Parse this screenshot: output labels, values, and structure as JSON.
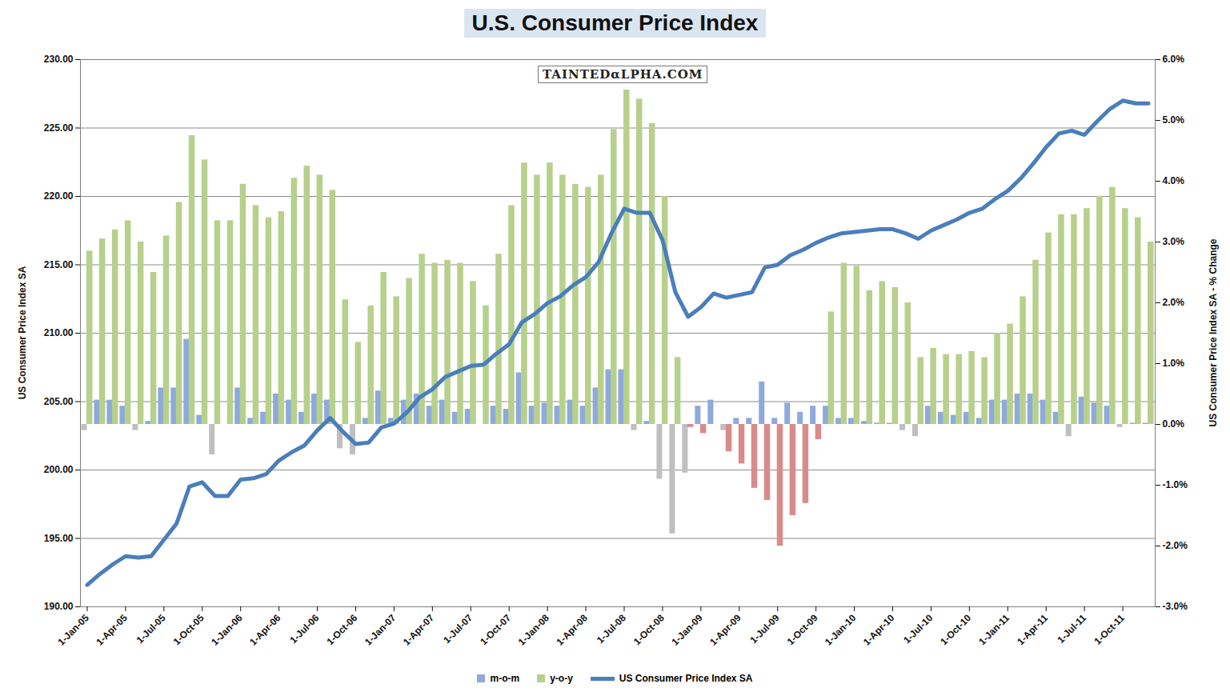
{
  "chart_data": {
    "type": "bar",
    "title": "U.S. Consumer Price Index",
    "annotations": [
      "TAINTEDαLPHA.COM"
    ],
    "y_label": "US Consumer Price Index SA",
    "y2_label": "US Consumer Price Index SA - % Change",
    "grid": true,
    "legend": "bottom",
    "categories": [
      "1-Jan-05",
      null,
      null,
      "1-Apr-05",
      null,
      null,
      "1-Jul-05",
      null,
      null,
      "1-Oct-05",
      null,
      null,
      "1-Jan-06",
      null,
      null,
      "1-Apr-06",
      null,
      null,
      "1-Jul-06",
      null,
      null,
      "1-Oct-06",
      null,
      null,
      "1-Jan-07",
      null,
      null,
      "1-Apr-07",
      null,
      null,
      "1-Jul-07",
      null,
      null,
      "1-Oct-07",
      null,
      null,
      "1-Jan-08",
      null,
      null,
      "1-Apr-08",
      null,
      null,
      "1-Jul-08",
      null,
      null,
      "1-Oct-08",
      null,
      null,
      "1-Jan-09",
      null,
      null,
      "1-Apr-09",
      null,
      null,
      "1-Jul-09",
      null,
      null,
      "1-Oct-09",
      null,
      null,
      "1-Jan-10",
      null,
      null,
      "1-Apr-10",
      null,
      null,
      "1-Jul-10",
      null,
      null,
      "1-Oct-10",
      null,
      null,
      "1-Jan-11",
      null,
      null,
      "1-Apr-11",
      null,
      null,
      "1-Jul-11",
      null,
      null,
      "1-Oct-11",
      null,
      null
    ],
    "ylim": [
      190,
      230
    ],
    "yticks": [
      {
        "value": 190,
        "label": "190.00"
      },
      {
        "value": 195,
        "label": "195.00"
      },
      {
        "value": 200,
        "label": "200.00"
      },
      {
        "value": 205,
        "label": "205.00"
      },
      {
        "value": 210,
        "label": "210.00"
      },
      {
        "value": 215,
        "label": "215.00"
      },
      {
        "value": 220,
        "label": "220.00"
      },
      {
        "value": 225,
        "label": "225.00"
      },
      {
        "value": 230,
        "label": "230.00"
      }
    ],
    "y2lim": [
      -3,
      6
    ],
    "y2ticks": [
      {
        "value": -3,
        "label": "-3.0%"
      },
      {
        "value": -2,
        "label": "-2.0%"
      },
      {
        "value": -1,
        "label": "-1.0%"
      },
      {
        "value": 0,
        "label": "0.0%"
      },
      {
        "value": 1,
        "label": "1.0%"
      },
      {
        "value": 2,
        "label": "2.0%"
      },
      {
        "value": 3,
        "label": "3.0%"
      },
      {
        "value": 4,
        "label": "4.0%"
      },
      {
        "value": 5,
        "label": "5.0%"
      },
      {
        "value": 6,
        "label": "6.0%"
      }
    ],
    "series": [
      {
        "name": "m-o-m",
        "type": "bar",
        "axis": "y2",
        "color": "#8eaadb",
        "values": [
          -0.1,
          0.4,
          0.4,
          0.3,
          -0.1,
          0.05,
          0.6,
          0.6,
          1.4,
          0.15,
          -0.5,
          0.0,
          0.6,
          0.1,
          0.2,
          0.5,
          0.4,
          0.2,
          0.5,
          0.4,
          -0.4,
          -0.5,
          0.1,
          0.55,
          0.1,
          0.4,
          0.5,
          0.3,
          0.4,
          0.2,
          0.25,
          0.0,
          0.3,
          0.25,
          0.85,
          0.3,
          0.35,
          0.3,
          0.4,
          0.3,
          0.6,
          0.9,
          0.9,
          -0.1,
          0.05,
          -0.9,
          -1.8,
          -0.8,
          0.3,
          0.4,
          -0.1,
          0.1,
          0.1,
          0.7,
          0.1,
          0.35,
          0.2,
          0.3,
          0.3,
          0.1,
          0.1,
          0.05,
          0.02,
          0.02,
          -0.1,
          -0.2,
          0.3,
          0.2,
          0.15,
          0.2,
          0.1,
          0.4,
          0.4,
          0.5,
          0.5,
          0.4,
          0.2,
          -0.2,
          0.45,
          0.35,
          0.3,
          -0.05,
          0.02,
          0.02
        ],
        "colors": [
          "#bfbfbf",
          "#8eaadb",
          "#8eaadb",
          "#8eaadb",
          "#bfbfbf",
          "#8eaadb",
          "#8eaadb",
          "#8eaadb",
          "#8eaadb",
          "#8eaadb",
          "#bfbfbf",
          "#8eaadb",
          "#8eaadb",
          "#8eaadb",
          "#8eaadb",
          "#8eaadb",
          "#8eaadb",
          "#8eaadb",
          "#8eaadb",
          "#8eaadb",
          "#bfbfbf",
          "#bfbfbf",
          "#8eaadb",
          "#8eaadb",
          "#8eaadb",
          "#8eaadb",
          "#8eaadb",
          "#8eaadb",
          "#8eaadb",
          "#8eaadb",
          "#8eaadb",
          "#8eaadb",
          "#8eaadb",
          "#8eaadb",
          "#8eaadb",
          "#8eaadb",
          "#8eaadb",
          "#8eaadb",
          "#8eaadb",
          "#8eaadb",
          "#8eaadb",
          "#8eaadb",
          "#8eaadb",
          "#bfbfbf",
          "#8eaadb",
          "#bfbfbf",
          "#bfbfbf",
          "#bfbfbf",
          "#8eaadb",
          "#8eaadb",
          "#bfbfbf",
          "#8eaadb",
          "#8eaadb",
          "#8eaadb",
          "#8eaadb",
          "#8eaadb",
          "#8eaadb",
          "#8eaadb",
          "#8eaadb",
          "#8eaadb",
          "#8eaadb",
          "#8eaadb",
          "#8eaadb",
          "#8eaadb",
          "#bfbfbf",
          "#bfbfbf",
          "#8eaadb",
          "#8eaadb",
          "#8eaadb",
          "#8eaadb",
          "#8eaadb",
          "#8eaadb",
          "#8eaadb",
          "#8eaadb",
          "#8eaadb",
          "#8eaadb",
          "#8eaadb",
          "#bfbfbf",
          "#8eaadb",
          "#8eaadb",
          "#8eaadb",
          "#bfbfbf",
          "#8eaadb",
          "#8eaadb"
        ]
      },
      {
        "name": "y-o-y",
        "type": "bar",
        "axis": "y2",
        "color": "#b7d08c",
        "values": [
          2.85,
          3.05,
          3.2,
          3.35,
          3.0,
          2.5,
          3.1,
          3.65,
          4.75,
          4.35,
          3.35,
          3.35,
          3.95,
          3.6,
          3.4,
          3.5,
          4.05,
          4.25,
          4.1,
          3.85,
          2.05,
          1.35,
          1.95,
          2.5,
          2.1,
          2.4,
          2.8,
          2.65,
          2.7,
          2.65,
          2.35,
          1.95,
          2.8,
          3.6,
          4.3,
          4.1,
          4.3,
          4.1,
          3.95,
          3.9,
          4.1,
          4.85,
          5.5,
          5.35,
          4.95,
          3.75,
          1.1,
          -0.05,
          -0.15,
          0.0,
          -0.45,
          -0.65,
          -1.05,
          -1.25,
          -2.0,
          -1.5,
          -1.3,
          -0.25,
          1.85,
          2.65,
          2.6,
          2.2,
          2.35,
          2.25,
          2.0,
          1.1,
          1.25,
          1.15,
          1.15,
          1.2,
          1.1,
          1.5,
          1.65,
          2.1,
          2.7,
          3.15,
          3.45,
          3.45,
          3.55,
          3.75,
          3.9,
          3.55,
          3.4,
          3.0
        ],
        "colors": [
          "#b7d08c",
          "#b7d08c",
          "#b7d08c",
          "#b7d08c",
          "#b7d08c",
          "#b7d08c",
          "#b7d08c",
          "#b7d08c",
          "#b7d08c",
          "#b7d08c",
          "#b7d08c",
          "#b7d08c",
          "#b7d08c",
          "#b7d08c",
          "#b7d08c",
          "#b7d08c",
          "#b7d08c",
          "#b7d08c",
          "#b7d08c",
          "#b7d08c",
          "#b7d08c",
          "#b7d08c",
          "#b7d08c",
          "#b7d08c",
          "#b7d08c",
          "#b7d08c",
          "#b7d08c",
          "#b7d08c",
          "#b7d08c",
          "#b7d08c",
          "#b7d08c",
          "#b7d08c",
          "#b7d08c",
          "#b7d08c",
          "#b7d08c",
          "#b7d08c",
          "#b7d08c",
          "#b7d08c",
          "#b7d08c",
          "#b7d08c",
          "#b7d08c",
          "#b7d08c",
          "#b7d08c",
          "#b7d08c",
          "#b7d08c",
          "#b7d08c",
          "#b7d08c",
          "#d98b8b",
          "#d98b8b",
          "#b7d08c",
          "#d98b8b",
          "#d98b8b",
          "#d98b8b",
          "#d98b8b",
          "#d98b8b",
          "#d98b8b",
          "#d98b8b",
          "#d98b8b",
          "#b7d08c",
          "#b7d08c",
          "#b7d08c",
          "#b7d08c",
          "#b7d08c",
          "#b7d08c",
          "#b7d08c",
          "#b7d08c",
          "#b7d08c",
          "#b7d08c",
          "#b7d08c",
          "#b7d08c",
          "#b7d08c",
          "#b7d08c",
          "#b7d08c",
          "#b7d08c",
          "#b7d08c",
          "#b7d08c",
          "#b7d08c",
          "#b7d08c",
          "#b7d08c",
          "#b7d08c",
          "#b7d08c",
          "#b7d08c",
          "#b7d08c",
          "#b7d08c"
        ]
      },
      {
        "name": "US Consumer Price Index SA",
        "type": "line",
        "color": "#4a7ebb",
        "values": [
          191.6,
          192.4,
          193.1,
          193.7,
          193.6,
          193.7,
          194.9,
          196.1,
          198.8,
          199.1,
          198.1,
          198.1,
          199.3,
          199.4,
          199.7,
          200.7,
          201.3,
          201.8,
          202.9,
          203.8,
          202.8,
          201.9,
          202.0,
          203.1,
          203.4,
          204.2,
          205.3,
          205.9,
          206.8,
          207.2,
          207.6,
          207.7,
          208.5,
          209.2,
          210.8,
          211.4,
          212.2,
          212.7,
          213.5,
          214.1,
          215.2,
          217.3,
          219.1,
          218.8,
          218.8,
          216.8,
          213.0,
          211.2,
          211.9,
          212.9,
          212.6,
          212.8,
          213.0,
          214.8,
          215.0,
          215.7,
          216.1,
          216.6,
          217.0,
          217.3,
          217.4,
          217.5,
          217.6,
          217.6,
          217.3,
          216.9,
          217.5,
          217.9,
          218.3,
          218.8,
          219.1,
          219.8,
          220.4,
          221.3,
          222.4,
          223.6,
          224.6,
          224.8,
          224.5,
          225.5,
          226.4,
          227.0,
          226.8,
          226.8
        ]
      }
    ]
  }
}
